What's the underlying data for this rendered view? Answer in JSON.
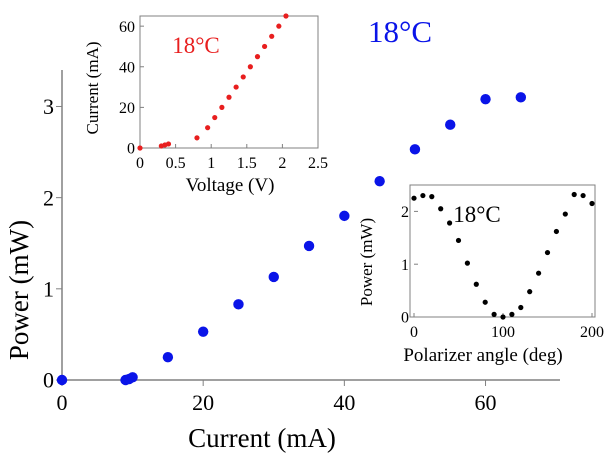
{
  "chart_data": [
    {
      "type": "scatter",
      "role": "main",
      "title": "18°C",
      "xlabel": "Current (mA)",
      "ylabel": "Power (mW)",
      "xlim": [
        0,
        68
      ],
      "ylim": [
        0,
        3.4
      ],
      "xticks": [
        0,
        20,
        40,
        60
      ],
      "yticks": [
        0,
        1,
        2,
        3
      ],
      "grid": false,
      "color": "#0a14e8",
      "x": [
        0,
        9,
        9.5,
        10,
        15,
        20,
        25,
        30,
        35,
        40,
        45,
        50,
        55,
        60,
        65
      ],
      "y": [
        0,
        0,
        0.01,
        0.03,
        0.25,
        0.53,
        0.83,
        1.13,
        1.47,
        1.8,
        2.18,
        2.53,
        2.8,
        3.08,
        3.1
      ]
    },
    {
      "type": "scatter",
      "role": "inset-top-left",
      "title": "18°C",
      "xlabel": "Voltage (V)",
      "ylabel": "Current (mA)",
      "xlim": [
        0,
        2.5
      ],
      "ylim": [
        0,
        65
      ],
      "xticks": [
        "0",
        "0.5",
        "1",
        "1.5",
        "2",
        "2.5"
      ],
      "yticks": [
        "0",
        "20",
        "40",
        "60"
      ],
      "grid": false,
      "color": "#e81e1e",
      "x": [
        0,
        0.3,
        0.35,
        0.4,
        0.8,
        0.95,
        1.05,
        1.15,
        1.25,
        1.35,
        1.45,
        1.55,
        1.65,
        1.75,
        1.85,
        1.95,
        2.05,
        2.1
      ],
      "y": [
        0,
        1,
        1.5,
        2,
        5,
        10,
        15,
        20,
        25,
        30,
        35,
        40,
        45,
        50,
        55,
        60,
        65,
        70
      ]
    },
    {
      "type": "scatter",
      "role": "inset-bottom-right",
      "title": "18°C",
      "xlabel": "Polarizer angle (deg)",
      "ylabel": "Power (mW)",
      "xlim": [
        0,
        200
      ],
      "ylim": [
        0,
        2.5
      ],
      "xticks": [
        "0",
        "100",
        "200"
      ],
      "yticks": [
        "0",
        "1",
        "2"
      ],
      "grid": false,
      "color": "#000000",
      "x": [
        0,
        10,
        20,
        30,
        40,
        50,
        60,
        70,
        80,
        90,
        100,
        110,
        120,
        130,
        140,
        150,
        160,
        170,
        180,
        190,
        200
      ],
      "y": [
        2.25,
        2.3,
        2.28,
        2.05,
        1.78,
        1.45,
        1.02,
        0.62,
        0.28,
        0.05,
        0.0,
        0.05,
        0.18,
        0.48,
        0.83,
        1.22,
        1.62,
        1.95,
        2.32,
        2.3,
        2.15
      ]
    }
  ]
}
